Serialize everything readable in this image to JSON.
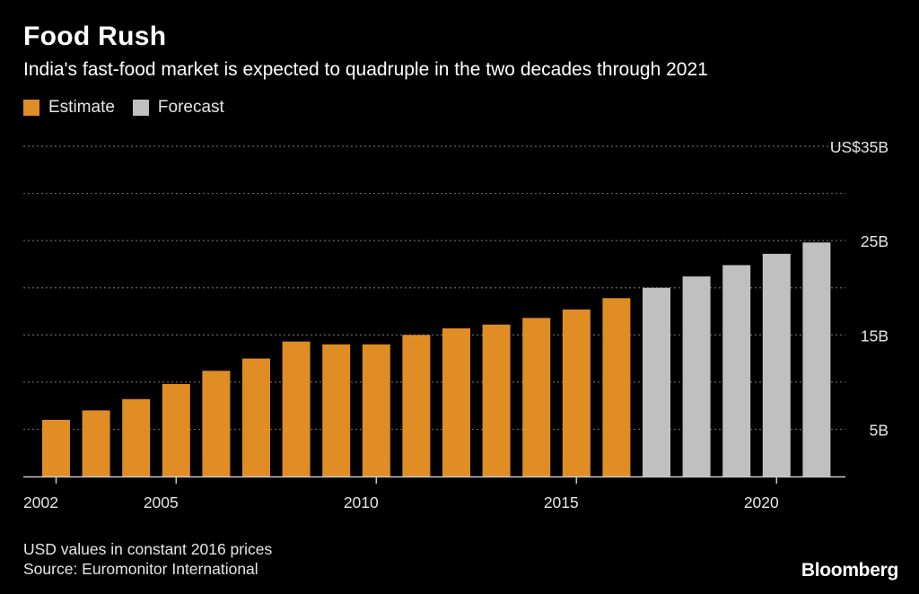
{
  "chart_data": {
    "type": "bar",
    "title": "Food Rush",
    "subtitle": "India's fast-food market is expected to quadruple in the two decades through 2021",
    "categories": [
      "2002",
      "2003",
      "2004",
      "2005",
      "2006",
      "2007",
      "2008",
      "2009",
      "2010",
      "2011",
      "2012",
      "2013",
      "2014",
      "2015",
      "2016",
      "2017",
      "2018",
      "2019",
      "2020",
      "2021"
    ],
    "values": [
      6.0,
      7.0,
      8.2,
      9.8,
      11.2,
      12.5,
      14.3,
      14.0,
      14.0,
      15.0,
      15.7,
      16.1,
      16.8,
      17.7,
      18.9,
      20.0,
      21.2,
      22.4,
      23.6,
      24.8
    ],
    "series_status": [
      "Estimate",
      "Estimate",
      "Estimate",
      "Estimate",
      "Estimate",
      "Estimate",
      "Estimate",
      "Estimate",
      "Estimate",
      "Estimate",
      "Estimate",
      "Estimate",
      "Estimate",
      "Estimate",
      "Estimate",
      "Forecast",
      "Forecast",
      "Forecast",
      "Forecast",
      "Forecast"
    ],
    "legend": [
      {
        "name": "Estimate",
        "color": "#e08d26"
      },
      {
        "name": "Forecast",
        "color": "#c0c0c0"
      }
    ],
    "legend_placement": "top-left",
    "x_tick_labels": [
      "2002",
      "2005",
      "2010",
      "2015",
      "2020"
    ],
    "y_tick_labels": [
      {
        "value": 35,
        "label": "US$35B"
      },
      {
        "value": 25,
        "label": "25B"
      },
      {
        "value": 15,
        "label": "15B"
      },
      {
        "value": 5,
        "label": "5B"
      }
    ],
    "gridlines": [
      5,
      10,
      15,
      20,
      25,
      30,
      35
    ],
    "ylim": [
      0,
      35
    ],
    "grid": true,
    "xlabel": "",
    "ylabel": ""
  },
  "footnote": {
    "line1": "USD values in constant 2016 prices",
    "line2": "Source: Euromonitor International"
  },
  "brand": "Bloomberg",
  "colors": {
    "background": "#000000",
    "estimate": "#e08d26",
    "forecast": "#c0c0c0",
    "grid": "#666666",
    "axis": "#c8c8c8",
    "text": "#e6e6e6"
  }
}
